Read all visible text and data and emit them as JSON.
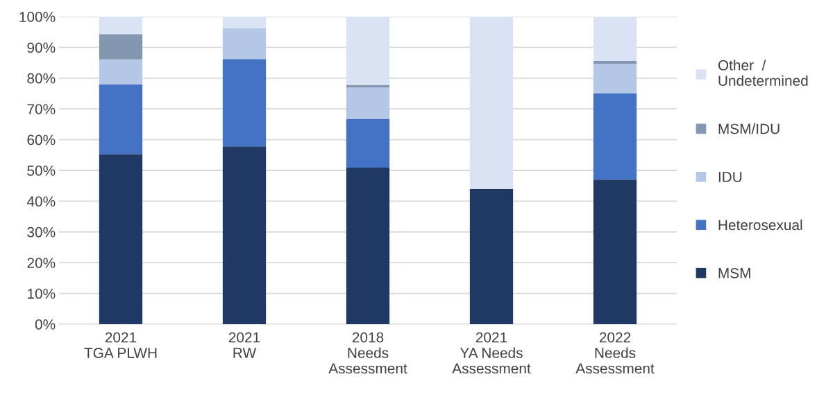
{
  "chart_data": {
    "type": "bar",
    "stacked": true,
    "categories": [
      "2021\nTGA PLWH",
      "2021\nRW",
      "2018\nNeeds\nAssessment",
      "2021\nYA Needs\nAssessment",
      "2022\nNeeds\nAssessment"
    ],
    "series": [
      {
        "name": "MSM",
        "color": "#203864",
        "values": [
          55.3,
          57.8,
          50.9,
          43.9,
          47.0
        ]
      },
      {
        "name": "Heterosexual",
        "color": "#4472c4",
        "values": [
          22.7,
          28.4,
          15.9,
          0,
          28.1
        ]
      },
      {
        "name": "IDU",
        "color": "#b4c7e7",
        "values": [
          8.1,
          10.0,
          10.1,
          0,
          9.6
        ]
      },
      {
        "name": "MSM/IDU",
        "color": "#8497b0",
        "values": [
          8.2,
          0,
          0.9,
          0,
          0.9
        ]
      },
      {
        "name": "Other  /\nUndetermined",
        "color": "#dae3f3",
        "values": [
          5.7,
          3.8,
          22.2,
          56.1,
          14.4
        ]
      }
    ],
    "ylim": [
      0,
      100
    ],
    "yticks": [
      {
        "value": 0,
        "label": "0%"
      },
      {
        "value": 10,
        "label": "10%"
      },
      {
        "value": 20,
        "label": "20%"
      },
      {
        "value": 30,
        "label": "30%"
      },
      {
        "value": 40,
        "label": "40%"
      },
      {
        "value": 50,
        "label": "50%"
      },
      {
        "value": 60,
        "label": "60%"
      },
      {
        "value": 70,
        "label": "70%"
      },
      {
        "value": 80,
        "label": "80%"
      },
      {
        "value": 90,
        "label": "90%"
      },
      {
        "value": 100,
        "label": "100%"
      }
    ],
    "grid": "y",
    "legend": "right"
  }
}
